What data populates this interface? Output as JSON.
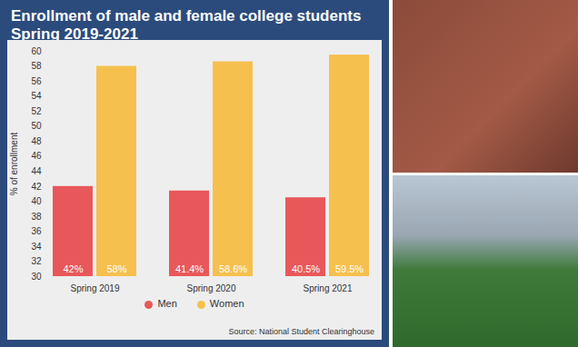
{
  "chart_data": {
    "type": "bar",
    "title": "Enrollment of male and female college students Spring 2019-2021",
    "categories": [
      "Spring 2019",
      "Spring 2020",
      "Spring 2021"
    ],
    "series": [
      {
        "name": "Men",
        "color": "#e8585a",
        "values": [
          42,
          41.4,
          40.5
        ],
        "value_labels": [
          "42%",
          "41.4%",
          "40.5%"
        ]
      },
      {
        "name": "Women",
        "color": "#f6c04e",
        "values": [
          58,
          58.6,
          59.5
        ],
        "value_labels": [
          "58%",
          "58.6%",
          "59.5%"
        ]
      }
    ],
    "ylabel": "% of enrollment",
    "ylim": [
      30,
      60
    ],
    "yticks": [
      30,
      32,
      34,
      36,
      38,
      40,
      42,
      44,
      46,
      48,
      50,
      52,
      54,
      56,
      58,
      60
    ],
    "grid": false,
    "data_labels": true,
    "legend": "bottom",
    "source": "Source: National Student Clearinghouse"
  }
}
